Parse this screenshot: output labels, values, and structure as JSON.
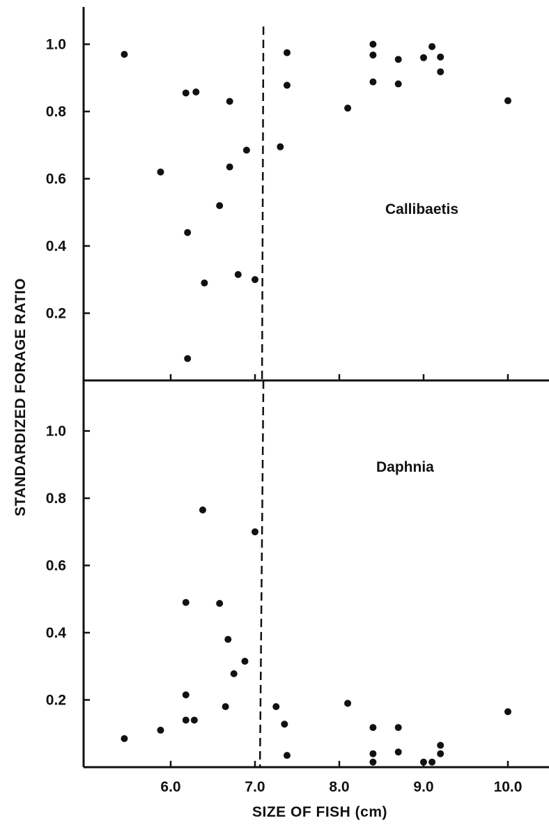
{
  "chart_data": [
    {
      "type": "scatter",
      "panel": "top",
      "label": "Callibaetis",
      "xlabel": "SIZE OF FISH (cm)",
      "ylabel": "STANDARDIZED FORAGE RATIO",
      "xlim": [
        5.0,
        10.5
      ],
      "ylim": [
        0.0,
        1.12
      ],
      "yticks": [
        "0.2",
        "0.4",
        "0.6",
        "0.8",
        "1.0"
      ],
      "ytick_values": [
        0.2,
        0.4,
        0.6,
        0.8,
        1.0
      ],
      "threshold_x": 7.1,
      "grid": false,
      "points": [
        {
          "x": 5.45,
          "y": 0.97
        },
        {
          "x": 5.88,
          "y": 0.62
        },
        {
          "x": 6.18,
          "y": 0.855
        },
        {
          "x": 6.3,
          "y": 0.858
        },
        {
          "x": 6.7,
          "y": 0.83
        },
        {
          "x": 6.9,
          "y": 0.685
        },
        {
          "x": 6.7,
          "y": 0.635
        },
        {
          "x": 6.58,
          "y": 0.52
        },
        {
          "x": 6.2,
          "y": 0.44
        },
        {
          "x": 6.4,
          "y": 0.29
        },
        {
          "x": 6.8,
          "y": 0.315
        },
        {
          "x": 7.0,
          "y": 0.3
        },
        {
          "x": 6.2,
          "y": 0.065
        },
        {
          "x": 7.3,
          "y": 0.695
        },
        {
          "x": 7.38,
          "y": 0.975
        },
        {
          "x": 7.38,
          "y": 0.878
        },
        {
          "x": 8.1,
          "y": 0.81
        },
        {
          "x": 8.4,
          "y": 1.0
        },
        {
          "x": 8.4,
          "y": 0.968
        },
        {
          "x": 8.4,
          "y": 0.888
        },
        {
          "x": 8.7,
          "y": 0.955
        },
        {
          "x": 8.7,
          "y": 0.882
        },
        {
          "x": 9.0,
          "y": 0.96
        },
        {
          "x": 9.1,
          "y": 0.993
        },
        {
          "x": 9.2,
          "y": 0.962
        },
        {
          "x": 9.2,
          "y": 0.918
        },
        {
          "x": 10.0,
          "y": 0.832
        }
      ]
    },
    {
      "type": "scatter",
      "panel": "bottom",
      "label": "Daphnia",
      "xlabel": "SIZE OF FISH (cm)",
      "ylabel": "STANDARDIZED FORAGE RATIO",
      "xlim": [
        5.0,
        10.5
      ],
      "ylim": [
        0.0,
        1.12
      ],
      "xticks": [
        "6.0",
        "7.0",
        "8.0",
        "9.0",
        "10.0"
      ],
      "xtick_values": [
        6.0,
        7.0,
        8.0,
        9.0,
        10.0
      ],
      "yticks": [
        "0.2",
        "0.4",
        "0.6",
        "0.8",
        "1.0"
      ],
      "ytick_values": [
        0.2,
        0.4,
        0.6,
        0.8,
        1.0
      ],
      "threshold_x": 7.1,
      "grid": false,
      "points": [
        {
          "x": 5.45,
          "y": 0.085
        },
        {
          "x": 5.88,
          "y": 0.11
        },
        {
          "x": 6.18,
          "y": 0.215
        },
        {
          "x": 6.18,
          "y": 0.14
        },
        {
          "x": 6.28,
          "y": 0.14
        },
        {
          "x": 6.38,
          "y": 0.765
        },
        {
          "x": 6.18,
          "y": 0.49
        },
        {
          "x": 6.58,
          "y": 0.487
        },
        {
          "x": 6.65,
          "y": 0.18
        },
        {
          "x": 6.68,
          "y": 0.38
        },
        {
          "x": 6.88,
          "y": 0.315
        },
        {
          "x": 6.75,
          "y": 0.278
        },
        {
          "x": 7.0,
          "y": 0.7
        },
        {
          "x": 7.25,
          "y": 0.18
        },
        {
          "x": 7.35,
          "y": 0.128
        },
        {
          "x": 7.38,
          "y": 0.035
        },
        {
          "x": 8.1,
          "y": 0.19
        },
        {
          "x": 8.4,
          "y": 0.118
        },
        {
          "x": 8.4,
          "y": 0.04
        },
        {
          "x": 8.4,
          "y": 0.015
        },
        {
          "x": 8.7,
          "y": 0.118
        },
        {
          "x": 8.7,
          "y": 0.045
        },
        {
          "x": 9.0,
          "y": 0.015
        },
        {
          "x": 9.1,
          "y": 0.015
        },
        {
          "x": 9.2,
          "y": 0.065
        },
        {
          "x": 9.2,
          "y": 0.04
        },
        {
          "x": 10.0,
          "y": 0.165
        }
      ]
    }
  ]
}
